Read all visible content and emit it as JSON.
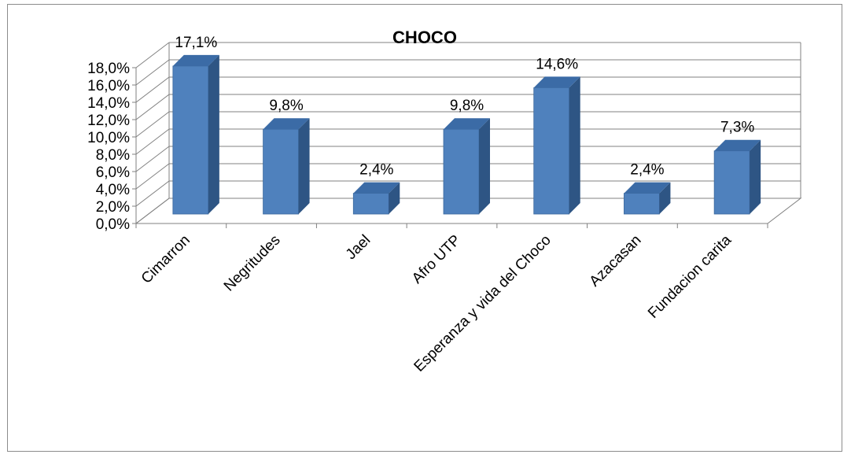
{
  "chart_data": {
    "type": "bar",
    "title": "CHOCO",
    "xlabel": "",
    "ylabel": "",
    "categories": [
      "Cimarron",
      "Negritudes",
      "Jael",
      "Afro UTP",
      "Esperanza y vida del Choco",
      "Azacasan",
      "Fundacion carita"
    ],
    "values": [
      17.1,
      9.8,
      2.4,
      9.8,
      14.6,
      2.4,
      7.3
    ],
    "data_labels": [
      "17,1%",
      "9,8%",
      "2,4%",
      "9,8%",
      "14,6%",
      "2,4%",
      "7,3%"
    ],
    "ylim": [
      0,
      18
    ],
    "yticks": [
      0,
      2,
      4,
      6,
      8,
      10,
      12,
      14,
      16,
      18
    ],
    "ytick_labels": [
      "0,0%",
      "2,0%",
      "4,0%",
      "6,0%",
      "8,0%",
      "10,0%",
      "12,0%",
      "14,0%",
      "16,0%",
      "18,0%"
    ],
    "grid": true,
    "legend": "none",
    "style": "3d-column",
    "colors": {
      "bar_front": "#4F81BD",
      "bar_side": "#2E5584",
      "bar_top": "#3B6BA6",
      "grid": "#808080"
    }
  }
}
